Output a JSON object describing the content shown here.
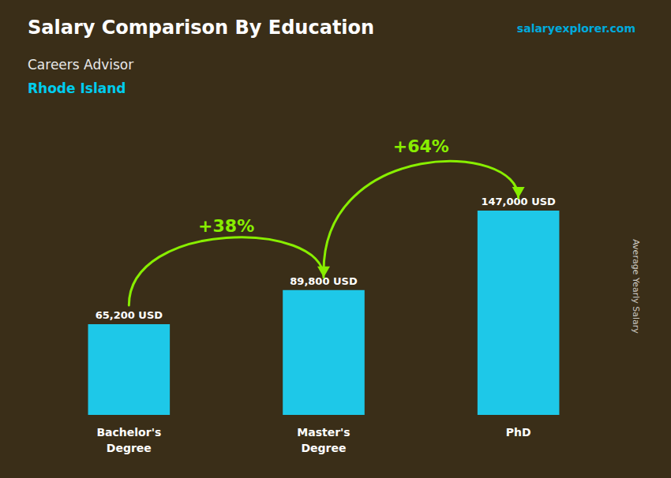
{
  "chart_data": {
    "type": "bar",
    "title": "Salary Comparison By Education",
    "subtitle": [
      "Careers Advisor",
      "Rhode Island"
    ],
    "watermark": "salaryexplorer.com",
    "ylabel": "Average Yearly Salary",
    "categories": [
      "Bachelor's\nDegree",
      "Master's\nDegree",
      "PhD"
    ],
    "values": [
      65200,
      89800,
      147000
    ],
    "value_labels": [
      "65,200 USD",
      "89,800 USD",
      "147,000 USD"
    ],
    "annotations": [
      {
        "text": "+38%",
        "color": "#88ee00"
      },
      {
        "text": "+64%",
        "color": "#88ee00"
      }
    ],
    "color": "#1ec8e8",
    "ylim": [
      0,
      185000
    ],
    "grid": false,
    "tick_labels": "x"
  }
}
